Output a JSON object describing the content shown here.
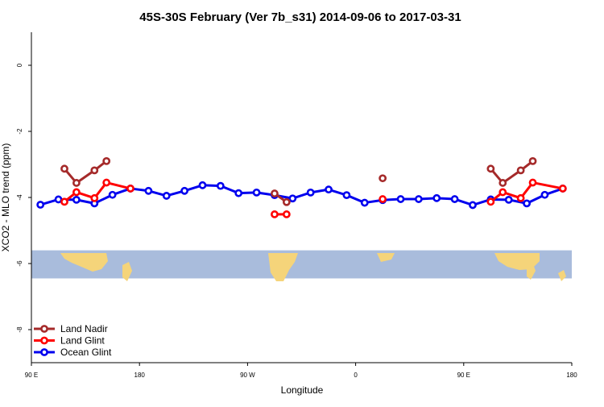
{
  "chart_data": {
    "type": "line",
    "title": "45S-30S February (Ver 7b_s31)   2014-09-06 to 2017-03-31",
    "xlabel": "Longitude",
    "ylabel": "XCO2 - MLO trend (ppm)",
    "xlim": [
      -90,
      180
    ],
    "ylim": [
      -9,
      1
    ],
    "x_ticks": [
      {
        "value": -90,
        "label": "90 E"
      },
      {
        "value": -36,
        "label": "180"
      },
      {
        "value": 18,
        "label": "90 W"
      },
      {
        "value": 72,
        "label": "0"
      },
      {
        "value": 126,
        "label": "90 E"
      },
      {
        "value": 180,
        "label": "180"
      }
    ],
    "y_ticks": [
      {
        "value": 0,
        "label": "0"
      },
      {
        "value": -2,
        "label": "-2"
      },
      {
        "value": -4,
        "label": "-4"
      },
      {
        "value": -6,
        "label": "-6"
      },
      {
        "value": -8,
        "label": "-8"
      }
    ],
    "map_band": {
      "y_top": -5.6,
      "y_bottom": -6.45,
      "ocean_color": "#a9bcdc",
      "land_color": "#f5d47a"
    },
    "legend_position": "bottom-left",
    "series": [
      {
        "name": "Ocean Glint",
        "color": "#0000ee",
        "segments": [
          [
            {
              "x": -85.5,
              "y": -4.22
            },
            {
              "x": -76.5,
              "y": -4.06
            },
            {
              "x": -67.5,
              "y": -4.07
            },
            {
              "x": -58.5,
              "y": -4.18
            },
            {
              "x": -49.5,
              "y": -3.92
            },
            {
              "x": -40.5,
              "y": -3.73
            },
            {
              "x": -31.5,
              "y": -3.8
            },
            {
              "x": -22.5,
              "y": -3.95
            },
            {
              "x": -13.5,
              "y": -3.8
            },
            {
              "x": -4.5,
              "y": -3.63
            },
            {
              "x": 4.5,
              "y": -3.65
            },
            {
              "x": 13.5,
              "y": -3.87
            },
            {
              "x": 22.5,
              "y": -3.85
            },
            {
              "x": 31.5,
              "y": -3.93
            },
            {
              "x": 40.5,
              "y": -4.03
            },
            {
              "x": 49.5,
              "y": -3.85
            },
            {
              "x": 58.5,
              "y": -3.76
            },
            {
              "x": 67.5,
              "y": -3.93
            },
            {
              "x": 76.5,
              "y": -4.16
            },
            {
              "x": 85.5,
              "y": -4.08
            },
            {
              "x": 94.5,
              "y": -4.05
            },
            {
              "x": 103.5,
              "y": -4.05
            },
            {
              "x": 112.5,
              "y": -4.02
            },
            {
              "x": 121.5,
              "y": -4.05
            },
            {
              "x": 130.5,
              "y": -4.23
            },
            {
              "x": 139.5,
              "y": -4.06
            },
            {
              "x": 148.5,
              "y": -4.07
            },
            {
              "x": 157.5,
              "y": -4.18
            },
            {
              "x": 166.5,
              "y": -3.92
            },
            {
              "x": 175.5,
              "y": -3.73
            }
          ]
        ]
      },
      {
        "name": "Land Glint",
        "color": "#ff0000",
        "segments": [
          [
            {
              "x": -73.5,
              "y": -4.13
            },
            {
              "x": -67.5,
              "y": -3.84
            },
            {
              "x": -58.5,
              "y": -4.02
            },
            {
              "x": -52.5,
              "y": -3.55
            },
            {
              "x": -40.5,
              "y": -3.73
            }
          ],
          [
            {
              "x": 31.5,
              "y": -4.51
            },
            {
              "x": 37.5,
              "y": -4.51
            }
          ],
          [
            {
              "x": 85.5,
              "y": -4.05
            }
          ],
          [
            {
              "x": 139.5,
              "y": -4.13
            },
            {
              "x": 145.5,
              "y": -3.84
            },
            {
              "x": 154.5,
              "y": -4.02
            },
            {
              "x": 160.5,
              "y": -3.55
            },
            {
              "x": 175.5,
              "y": -3.73
            }
          ]
        ]
      },
      {
        "name": "Land Nadir",
        "color": "#a52a2a",
        "segments": [
          [
            {
              "x": -73.5,
              "y": -3.13
            },
            {
              "x": -67.5,
              "y": -3.56
            },
            {
              "x": -58.5,
              "y": -3.18
            },
            {
              "x": -52.5,
              "y": -2.9
            }
          ],
          [
            {
              "x": 31.5,
              "y": -3.88
            },
            {
              "x": 37.5,
              "y": -4.14
            }
          ],
          [
            {
              "x": 85.5,
              "y": -3.42
            }
          ],
          [
            {
              "x": 139.5,
              "y": -3.13
            },
            {
              "x": 145.5,
              "y": -3.56
            },
            {
              "x": 154.5,
              "y": -3.18
            },
            {
              "x": 160.5,
              "y": -2.9
            }
          ]
        ]
      }
    ],
    "legend": [
      {
        "label": "Land Nadir",
        "color": "#a52a2a"
      },
      {
        "label": "Land Glint",
        "color": "#ff0000"
      },
      {
        "label": "Ocean Glint",
        "color": "#0000ee"
      }
    ]
  }
}
